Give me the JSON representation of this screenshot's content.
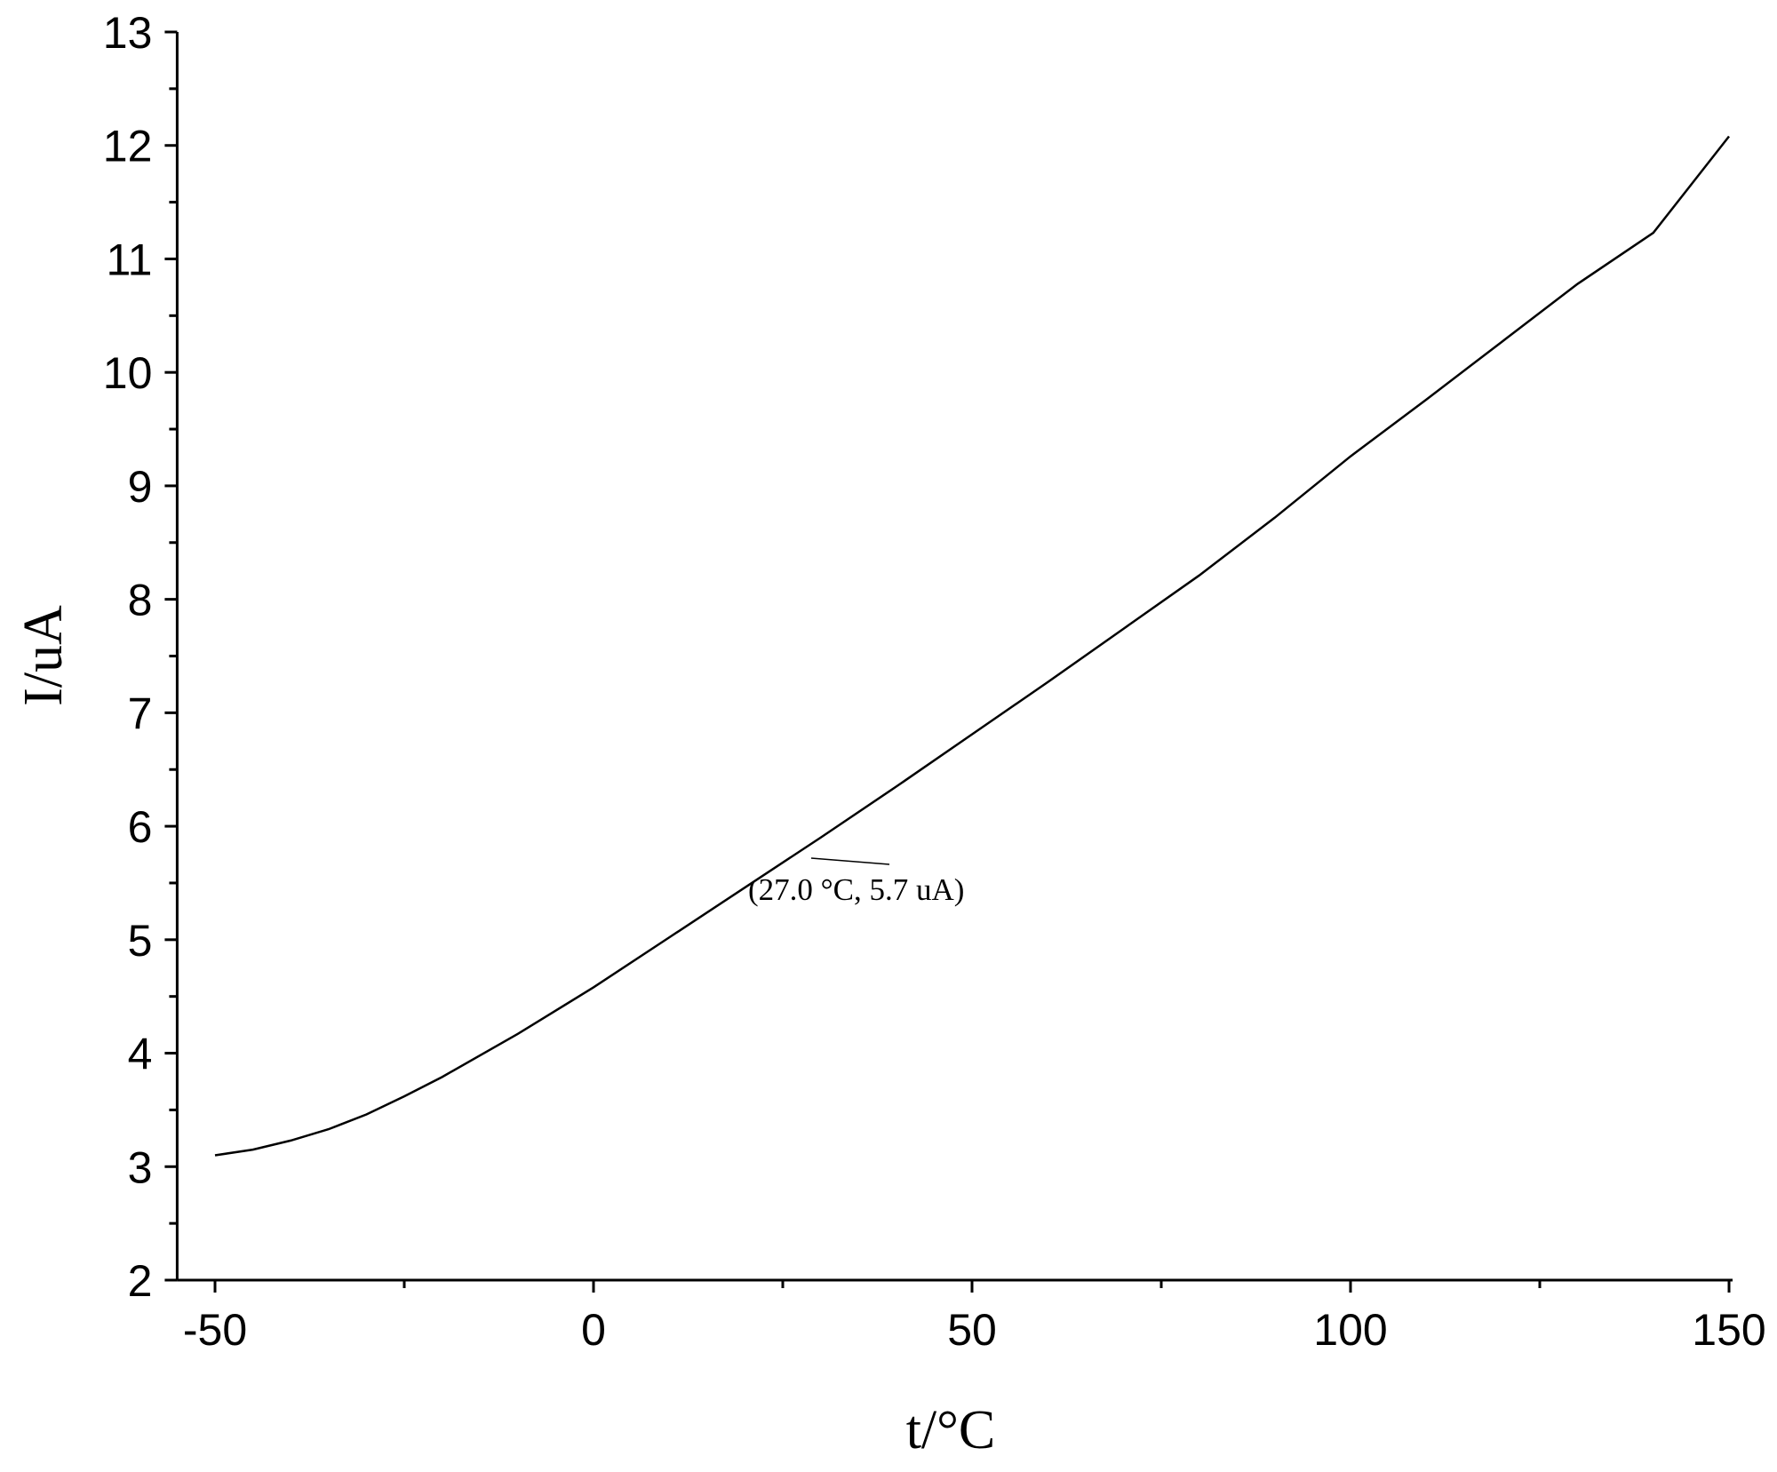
{
  "chart_data": {
    "type": "line",
    "x_label": "t/°C",
    "y_label": "I/uA",
    "annotation": "(27.0 °C, 5.7 uA)",
    "x": [
      -50,
      -45,
      -40,
      -35,
      -30,
      -25,
      -20,
      -10,
      0,
      10,
      20,
      30,
      40,
      50,
      60,
      70,
      80,
      90,
      100,
      110,
      120,
      130,
      140,
      150
    ],
    "values": [
      3.1,
      3.15,
      3.23,
      3.33,
      3.46,
      3.62,
      3.79,
      4.17,
      4.58,
      5.02,
      5.46,
      5.9,
      6.35,
      6.81,
      7.27,
      7.74,
      8.21,
      8.72,
      9.26,
      9.76,
      10.27,
      10.78,
      11.23,
      12.08
    ],
    "color": "#000000",
    "xlim": [
      -55,
      150
    ],
    "xticks": [
      -50,
      0,
      50,
      100,
      150
    ],
    "ylim": [
      2,
      13
    ],
    "yticks": [
      2,
      3,
      4,
      5,
      6,
      7,
      8,
      9,
      10,
      11,
      12,
      13
    ],
    "grid": false
  }
}
